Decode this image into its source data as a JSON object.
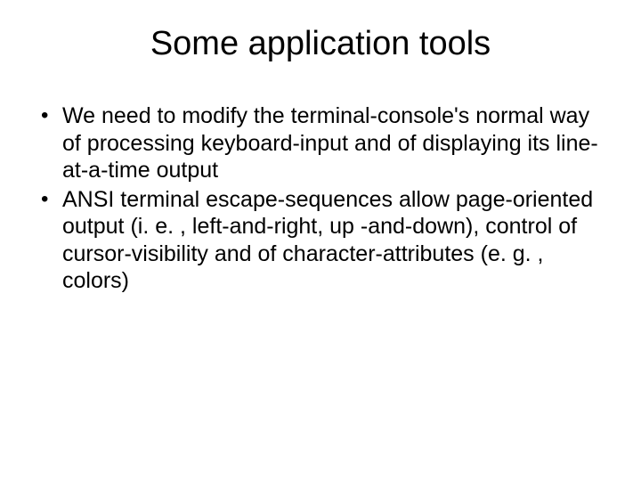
{
  "slide": {
    "title": "Some application tools",
    "bullets": [
      "We need to modify the terminal-console's normal way of processing keyboard-input and of displaying its line-at-a-time output",
      "ANSI terminal escape-sequences allow page-oriented output (i. e. , left-and-right, up -and-down), control of cursor-visibility and of character-attributes (e. g. , colors)"
    ]
  },
  "styling": {
    "background_color": "#ffffff",
    "text_color": "#000000",
    "font_family": "Arial",
    "title_fontsize": 38,
    "title_fontweight": 400,
    "body_fontsize": 25,
    "line_height": 1.22,
    "bullet_char": "•"
  }
}
